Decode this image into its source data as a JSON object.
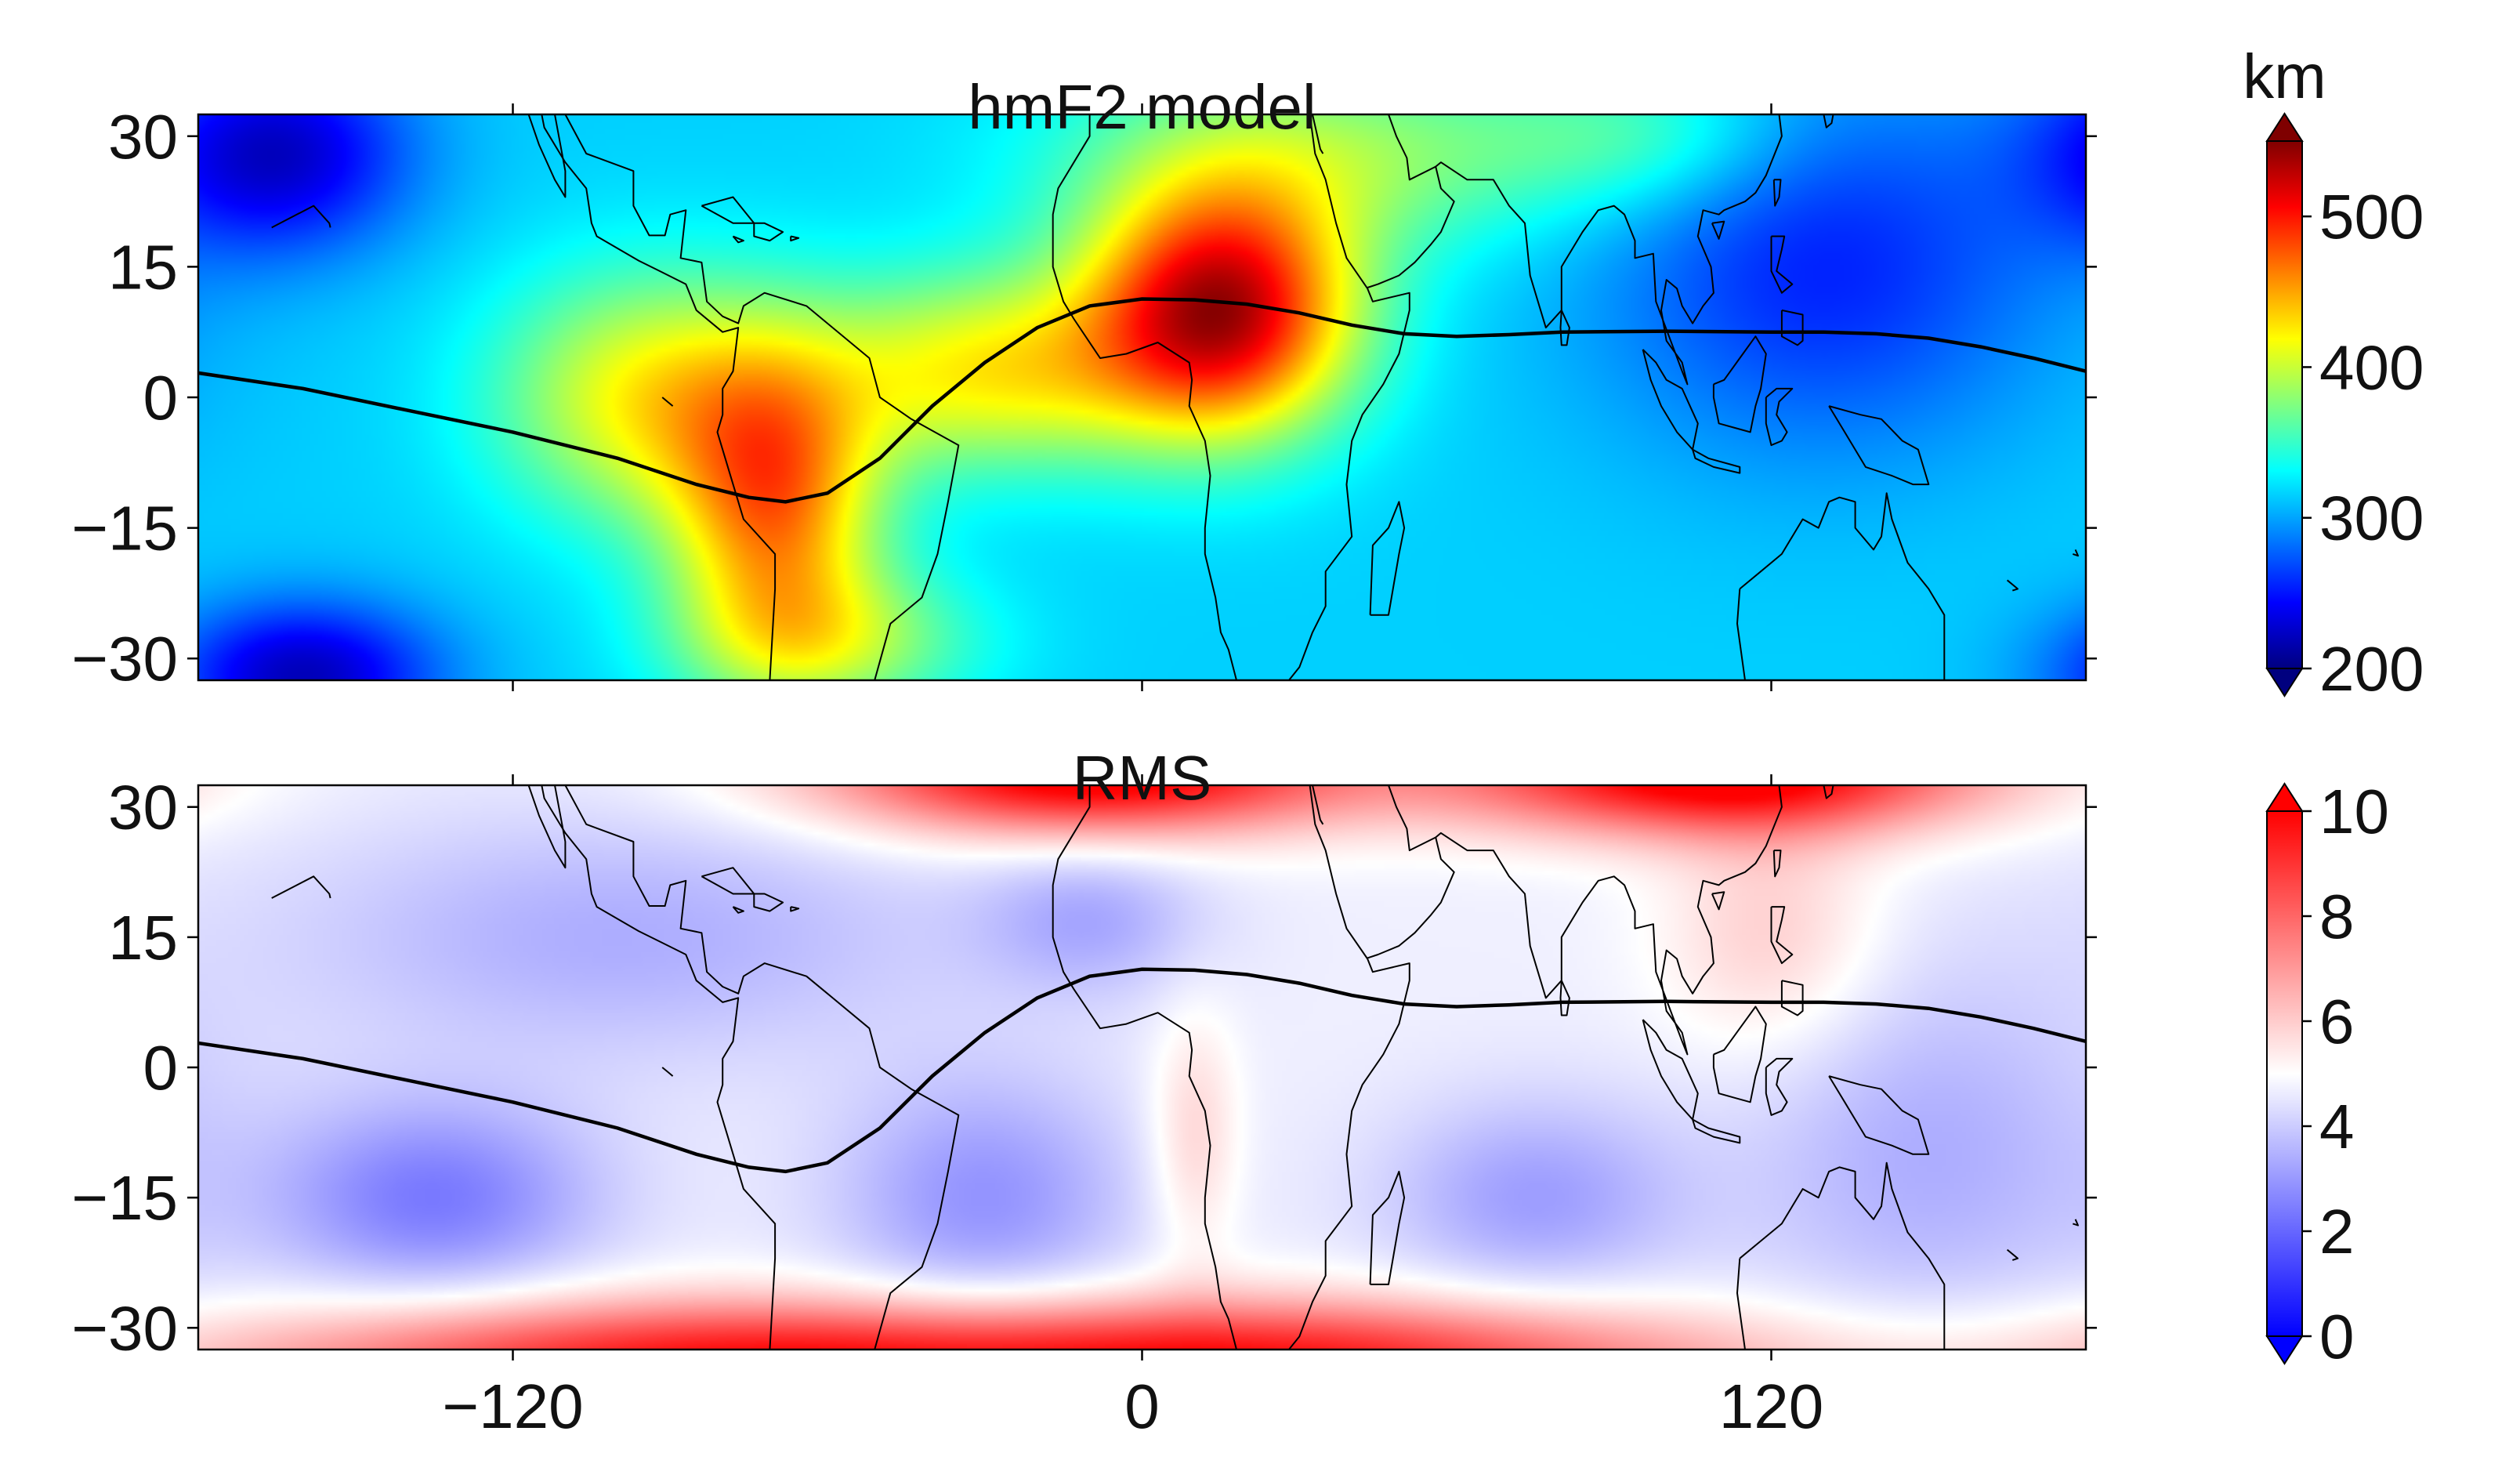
{
  "panels": [
    {
      "title": "hmF2 model",
      "colorbar": {
        "unit": "km",
        "ticks": [
          "200",
          "300",
          "400",
          "500"
        ],
        "tick_values": [
          200,
          300,
          400,
          500
        ],
        "range": [
          200,
          550
        ],
        "colormap": "jet",
        "extend": "both",
        "extend_colors": {
          "low": "#00007f",
          "high": "#7f0000"
        }
      },
      "field": {
        "base": 315,
        "blobs": [
          {
            "lon": 15,
            "lat": 10,
            "amp": 215,
            "sx": 18,
            "sy": 10
          },
          {
            "lon": -70,
            "lat": -12,
            "amp": 140,
            "sx": 14,
            "sy": 12
          },
          {
            "lon": -95,
            "lat": 0,
            "amp": 100,
            "sx": 20,
            "sy": 10
          },
          {
            "lon": -30,
            "lat": 3,
            "amp": 105,
            "sx": 24,
            "sy": 8
          },
          {
            "lon": 35,
            "lat": 28,
            "amp": 65,
            "sx": 35,
            "sy": 8
          },
          {
            "lon": -60,
            "lat": -28,
            "amp": 70,
            "sx": 20,
            "sy": 6
          },
          {
            "lon": -165,
            "lat": 28,
            "amp": -90,
            "sx": 18,
            "sy": 8
          },
          {
            "lon": -160,
            "lat": -32,
            "amp": -95,
            "sx": 18,
            "sy": 6
          },
          {
            "lon": 130,
            "lat": 15,
            "amp": -60,
            "sx": 30,
            "sy": 15
          },
          {
            "lon": 95,
            "lat": 30,
            "amp": 40,
            "sx": 20,
            "sy": 6
          }
        ]
      }
    },
    {
      "title": "RMS",
      "colorbar": {
        "unit": "",
        "ticks": [
          "0",
          "2",
          "4",
          "6",
          "8",
          "10"
        ],
        "tick_values": [
          0,
          2,
          4,
          6,
          8,
          10
        ],
        "range": [
          0,
          10
        ],
        "colormap": "bwr",
        "extend": "both",
        "extend_colors": {
          "low": "#0000ff",
          "high": "#ff0000"
        }
      },
      "field": {
        "base": 4.7,
        "blobs": [
          {
            "lon": -10,
            "lat": 34,
            "amp": 6,
            "sx": 35,
            "sy": 5
          },
          {
            "lon": 110,
            "lat": 34,
            "amp": 6,
            "sx": 35,
            "sy": 5
          },
          {
            "lon": -90,
            "lat": -34,
            "amp": 4.5,
            "sx": 60,
            "sy": 5
          },
          {
            "lon": 30,
            "lat": -34,
            "amp": 4.5,
            "sx": 60,
            "sy": 5
          },
          {
            "lon": -135,
            "lat": -15,
            "amp": -2.3,
            "sx": 22,
            "sy": 8
          },
          {
            "lon": -30,
            "lat": -15,
            "amp": -1.8,
            "sx": 20,
            "sy": 10
          },
          {
            "lon": 75,
            "lat": -15,
            "amp": -1.6,
            "sx": 20,
            "sy": 8
          },
          {
            "lon": 150,
            "lat": -10,
            "amp": -1.3,
            "sx": 25,
            "sy": 15
          },
          {
            "lon": -100,
            "lat": 15,
            "amp": -1.3,
            "sx": 45,
            "sy": 10
          },
          {
            "lon": -10,
            "lat": 17,
            "amp": -1.3,
            "sx": 15,
            "sy": 6
          },
          {
            "lon": 120,
            "lat": 15,
            "amp": 1.3,
            "sx": 15,
            "sy": 10
          },
          {
            "lon": 10,
            "lat": -8,
            "amp": 1.2,
            "sx": 6,
            "sy": 10
          }
        ]
      }
    }
  ],
  "axes": {
    "lon_range": [
      -180,
      180
    ],
    "lat_range": [
      -32.5,
      32.5
    ],
    "x_ticks": [
      -120,
      0,
      120
    ],
    "x_tick_labels": [
      "−120",
      "0",
      "120"
    ],
    "y_ticks": [
      30,
      15,
      0,
      -15,
      -30
    ],
    "y_tick_labels": [
      "30",
      "15",
      "0",
      "−15",
      "−30"
    ]
  },
  "magnetic_equator": [
    [
      -180,
      2.8
    ],
    [
      -160,
      1
    ],
    [
      -140,
      -1.5
    ],
    [
      -120,
      -4
    ],
    [
      -100,
      -7
    ],
    [
      -85,
      -10
    ],
    [
      -75,
      -11.5
    ],
    [
      -68,
      -12
    ],
    [
      -60,
      -11
    ],
    [
      -50,
      -7
    ],
    [
      -40,
      -1
    ],
    [
      -30,
      4
    ],
    [
      -20,
      8
    ],
    [
      -10,
      10.5
    ],
    [
      0,
      11.3
    ],
    [
      10,
      11.2
    ],
    [
      20,
      10.7
    ],
    [
      30,
      9.7
    ],
    [
      40,
      8.3
    ],
    [
      50,
      7.3
    ],
    [
      60,
      7
    ],
    [
      70,
      7.2
    ],
    [
      80,
      7.5
    ],
    [
      100,
      7.6
    ],
    [
      120,
      7.5
    ],
    [
      130,
      7.5
    ],
    [
      140,
      7.3
    ],
    [
      150,
      6.8
    ],
    [
      160,
      5.8
    ],
    [
      170,
      4.5
    ],
    [
      180,
      3
    ]
  ],
  "coastlines": [
    [
      [
        -110,
        32.5
      ],
      [
        -106,
        28
      ],
      [
        -97,
        26
      ],
      [
        -97,
        22
      ],
      [
        -94,
        18.6
      ],
      [
        -91,
        18.6
      ],
      [
        -90,
        21
      ],
      [
        -87,
        21.5
      ],
      [
        -88,
        16
      ],
      [
        -84,
        15.5
      ],
      [
        -83,
        11
      ],
      [
        -80,
        9.3
      ],
      [
        -77,
        8.5
      ],
      [
        -76,
        10.5
      ],
      [
        -72,
        12
      ],
      [
        -64,
        10.5
      ],
      [
        -60,
        8.5
      ],
      [
        -52,
        4.5
      ],
      [
        -50,
        0
      ],
      [
        -44,
        -2.5
      ],
      [
        -35,
        -5.5
      ],
      [
        -37,
        -12
      ],
      [
        -39,
        -18
      ],
      [
        -42,
        -23
      ],
      [
        -48,
        -26
      ],
      [
        -51,
        -32.5
      ]
    ],
    [
      [
        -71,
        -32.5
      ],
      [
        -70,
        -22
      ],
      [
        -70,
        -18
      ],
      [
        -76,
        -14
      ],
      [
        -79,
        -8
      ],
      [
        -81,
        -4
      ],
      [
        -80,
        -2
      ],
      [
        -80,
        1
      ],
      [
        -78,
        3
      ],
      [
        -77,
        8
      ],
      [
        -80,
        7.5
      ],
      [
        -85,
        10
      ],
      [
        -87,
        13
      ],
      [
        -92,
        14.5
      ],
      [
        -96,
        15.7
      ],
      [
        -104,
        18.5
      ],
      [
        -105,
        20
      ],
      [
        -106,
        24
      ],
      [
        -110,
        27
      ],
      [
        -114,
        31
      ],
      [
        -114.5,
        32.5
      ]
    ],
    [
      [
        -112,
        32.5
      ],
      [
        -110,
        26
      ],
      [
        -110,
        23
      ],
      [
        -112,
        25
      ],
      [
        -115,
        29
      ],
      [
        -117,
        32.5
      ]
    ],
    [
      [
        -84,
        22
      ],
      [
        -78,
        23
      ],
      [
        -74,
        20
      ],
      [
        -78,
        20
      ],
      [
        -84,
        22
      ]
    ],
    [
      [
        -74,
        20
      ],
      [
        -72,
        20
      ],
      [
        -68.5,
        19
      ],
      [
        -71,
        18
      ],
      [
        -74,
        18.5
      ],
      [
        -74,
        20
      ]
    ],
    [
      [
        -78,
        18.5
      ],
      [
        -76,
        18
      ],
      [
        -77,
        17.8
      ],
      [
        -78,
        18.5
      ]
    ],
    [
      [
        -67,
        18.5
      ],
      [
        -65.5,
        18.3
      ],
      [
        -67,
        18
      ],
      [
        -67,
        18.5
      ]
    ],
    [
      [
        -10,
        32.5
      ],
      [
        -10,
        30
      ],
      [
        -16,
        24
      ],
      [
        -17,
        21
      ],
      [
        -17,
        15
      ],
      [
        -15,
        11
      ],
      [
        -13,
        9
      ],
      [
        -8,
        4.5
      ],
      [
        -3,
        5
      ],
      [
        3,
        6.3
      ],
      [
        9,
        4
      ],
      [
        9.5,
        2
      ],
      [
        9,
        -1
      ],
      [
        12,
        -5
      ],
      [
        13,
        -9
      ],
      [
        12,
        -15
      ],
      [
        12,
        -18
      ],
      [
        14,
        -23
      ],
      [
        15,
        -27
      ],
      [
        16.5,
        -29
      ],
      [
        18,
        -32.5
      ]
    ],
    [
      [
        32,
        32.5
      ],
      [
        33,
        28
      ],
      [
        35,
        25
      ],
      [
        37,
        20
      ],
      [
        39,
        16
      ],
      [
        43,
        12.5
      ],
      [
        44,
        11
      ],
      [
        51,
        12
      ],
      [
        51,
        10
      ],
      [
        49,
        5
      ],
      [
        46,
        1.5
      ],
      [
        42,
        -2
      ],
      [
        40,
        -5
      ],
      [
        39,
        -10
      ],
      [
        40,
        -16
      ],
      [
        35,
        -20
      ],
      [
        35,
        -24
      ],
      [
        32.5,
        -27
      ],
      [
        30,
        -31
      ],
      [
        28,
        -32.5
      ]
    ],
    [
      [
        32.5,
        32.5
      ],
      [
        34,
        28.5
      ],
      [
        34.5,
        28
      ]
    ],
    [
      [
        43,
        12.6
      ],
      [
        45,
        13
      ],
      [
        49,
        14
      ],
      [
        52,
        15.5
      ],
      [
        55,
        17.5
      ],
      [
        57,
        19
      ],
      [
        59.5,
        22.5
      ],
      [
        57,
        24
      ],
      [
        56,
        26.5
      ],
      [
        51,
        25
      ],
      [
        50.5,
        27.5
      ],
      [
        48.5,
        30
      ],
      [
        47,
        32.5
      ]
    ],
    [
      [
        56,
        26.5
      ],
      [
        57,
        27
      ],
      [
        62,
        25
      ],
      [
        67,
        25
      ],
      [
        70,
        22
      ],
      [
        73,
        20
      ],
      [
        74,
        14
      ],
      [
        77,
        8
      ],
      [
        80,
        10
      ],
      [
        80,
        15
      ],
      [
        84,
        19
      ],
      [
        87,
        21.5
      ],
      [
        90,
        22
      ],
      [
        92,
        21
      ],
      [
        94,
        18
      ],
      [
        94,
        16
      ],
      [
        97.5,
        16.5
      ],
      [
        98,
        11
      ],
      [
        100.5,
        7
      ],
      [
        103,
        3
      ],
      [
        104,
        1.5
      ],
      [
        103,
        4
      ],
      [
        100,
        6.5
      ],
      [
        99,
        10
      ],
      [
        100,
        13.5
      ],
      [
        102,
        12.5
      ],
      [
        103,
        10.5
      ],
      [
        105,
        8.5
      ],
      [
        107,
        10.5
      ],
      [
        109,
        12
      ],
      [
        108.5,
        15
      ],
      [
        106,
        18.5
      ],
      [
        107,
        21.5
      ],
      [
        110,
        21
      ],
      [
        111,
        21.5
      ],
      [
        115,
        22.5
      ],
      [
        117,
        23.5
      ],
      [
        119,
        25.5
      ],
      [
        120,
        27
      ],
      [
        122,
        30
      ],
      [
        121.5,
        32.5
      ]
    ],
    [
      [
        80,
        10
      ],
      [
        81.5,
        8
      ],
      [
        81,
        6
      ],
      [
        80,
        6
      ],
      [
        79.8,
        8
      ],
      [
        80,
        10
      ]
    ],
    [
      [
        95.5,
        5.5
      ],
      [
        98,
        4
      ],
      [
        100,
        2
      ],
      [
        103,
        1
      ],
      [
        106,
        -3
      ],
      [
        105,
        -6
      ],
      [
        102,
        -4
      ],
      [
        99,
        -1
      ],
      [
        97,
        2
      ],
      [
        95.5,
        5.5
      ]
    ],
    [
      [
        105,
        -6
      ],
      [
        108,
        -7
      ],
      [
        114,
        -8
      ],
      [
        114,
        -8.7
      ],
      [
        109,
        -8
      ],
      [
        105.5,
        -7
      ],
      [
        105,
        -6
      ]
    ],
    [
      [
        109,
        1.5
      ],
      [
        111,
        2
      ],
      [
        114,
        4.5
      ],
      [
        117,
        7
      ],
      [
        119,
        5
      ],
      [
        118,
        1
      ],
      [
        117,
        -1
      ],
      [
        116,
        -4
      ],
      [
        113,
        -3.5
      ],
      [
        110,
        -3
      ],
      [
        109,
        0
      ],
      [
        109,
        1.5
      ]
    ],
    [
      [
        119,
        0
      ],
      [
        121,
        1
      ],
      [
        124,
        1
      ],
      [
        121.5,
        -0.5
      ],
      [
        121,
        -2
      ],
      [
        123,
        -4
      ],
      [
        122,
        -5
      ],
      [
        120,
        -5.5
      ],
      [
        119,
        -3
      ],
      [
        119,
        0
      ]
    ],
    [
      [
        131,
        -1
      ],
      [
        137,
        -2
      ],
      [
        141,
        -2.5
      ],
      [
        145,
        -5
      ],
      [
        148,
        -6
      ],
      [
        150,
        -10
      ],
      [
        147,
        -10
      ],
      [
        143,
        -9
      ],
      [
        138,
        -8
      ],
      [
        134,
        -4
      ],
      [
        131,
        -1
      ]
    ],
    [
      [
        120,
        18.5
      ],
      [
        122.5,
        18.5
      ],
      [
        122,
        17
      ],
      [
        121,
        14.5
      ],
      [
        124,
        13
      ],
      [
        122,
        12
      ],
      [
        120,
        14.5
      ],
      [
        120,
        18.5
      ]
    ],
    [
      [
        122,
        10
      ],
      [
        126,
        9.5
      ],
      [
        126,
        6.5
      ],
      [
        125,
        6
      ],
      [
        122,
        7
      ],
      [
        122,
        10
      ]
    ],
    [
      [
        120.5,
        25
      ],
      [
        121.8,
        25
      ],
      [
        121.5,
        23
      ],
      [
        120.7,
        22
      ],
      [
        120.5,
        25
      ]
    ],
    [
      [
        108.7,
        20
      ],
      [
        111,
        20.2
      ],
      [
        110,
        18.2
      ],
      [
        108.7,
        20
      ]
    ],
    [
      [
        130,
        32.5
      ],
      [
        130.5,
        31
      ],
      [
        131.5,
        31.5
      ],
      [
        131.8,
        32.5
      ]
    ],
    [
      [
        126.5,
        33.3
      ],
      [
        127,
        34.5
      ]
    ],
    [
      [
        114,
        -22
      ],
      [
        113.5,
        -26
      ],
      [
        115,
        -32.5
      ]
    ],
    [
      [
        114,
        -22
      ],
      [
        118,
        -20
      ],
      [
        122,
        -18
      ],
      [
        126,
        -14
      ],
      [
        129,
        -15
      ],
      [
        131,
        -12
      ],
      [
        133,
        -11.5
      ],
      [
        136,
        -12
      ],
      [
        136,
        -15
      ],
      [
        139.5,
        -17.5
      ],
      [
        141,
        -16
      ],
      [
        142,
        -11
      ],
      [
        143,
        -14
      ],
      [
        146,
        -19
      ],
      [
        150,
        -22
      ],
      [
        153,
        -25
      ],
      [
        153,
        -32.5
      ]
    ],
    [
      [
        43.5,
        -25
      ],
      [
        47,
        -25
      ],
      [
        49,
        -18
      ],
      [
        50,
        -15
      ],
      [
        49,
        -12
      ],
      [
        47,
        -15
      ],
      [
        44,
        -17
      ],
      [
        43.5,
        -25
      ]
    ],
    [
      [
        -166,
        19.5
      ],
      [
        -158,
        22
      ],
      [
        -155,
        20
      ],
      [
        -154.8,
        19.5
      ]
    ],
    [
      [
        -91.5,
        0
      ],
      [
        -90.5,
        -0.5
      ],
      [
        -89.5,
        -1
      ]
    ],
    [
      [
        165,
        -21
      ],
      [
        167,
        -22
      ],
      [
        166,
        -22.2
      ]
    ],
    [
      [
        178,
        -17.5
      ],
      [
        178.5,
        -18.2
      ],
      [
        177.5,
        -18
      ]
    ]
  ]
}
